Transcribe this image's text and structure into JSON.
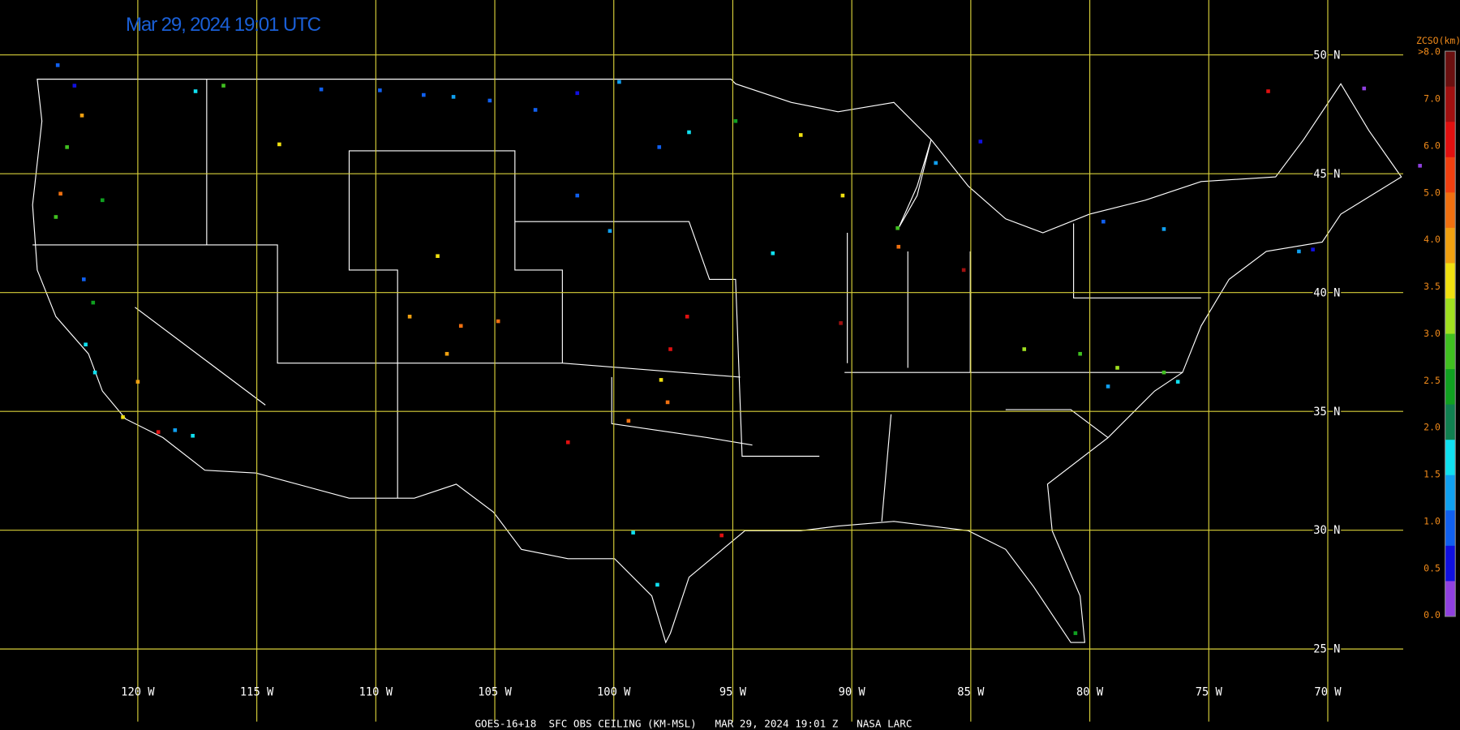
{
  "header": {
    "title": "Mar 29, 2024 19:01 UTC"
  },
  "grid": {
    "latitudes": [
      "50 N",
      "45 N",
      "40 N",
      "35 N",
      "30 N",
      "25 N"
    ],
    "longitudes": [
      "120 W",
      "115 W",
      "110 W",
      "105 W",
      "100 W",
      "95 W",
      "90 W",
      "85 W",
      "80 W",
      "75 W",
      "70 W"
    ]
  },
  "legend": {
    "title": "ZCSO(km)",
    "labels": [
      ">8.0",
      "7.0",
      "6.0",
      "5.0",
      "4.0",
      "3.5",
      "3.0",
      "2.5",
      "2.0",
      "1.5",
      "1.0",
      "0.5",
      "0.0"
    ]
  },
  "footer": "GOES-16+18  SFC OBS CEILING (KM-MSL)   MAR 29, 2024 19:01 Z   NASA LARC"
}
